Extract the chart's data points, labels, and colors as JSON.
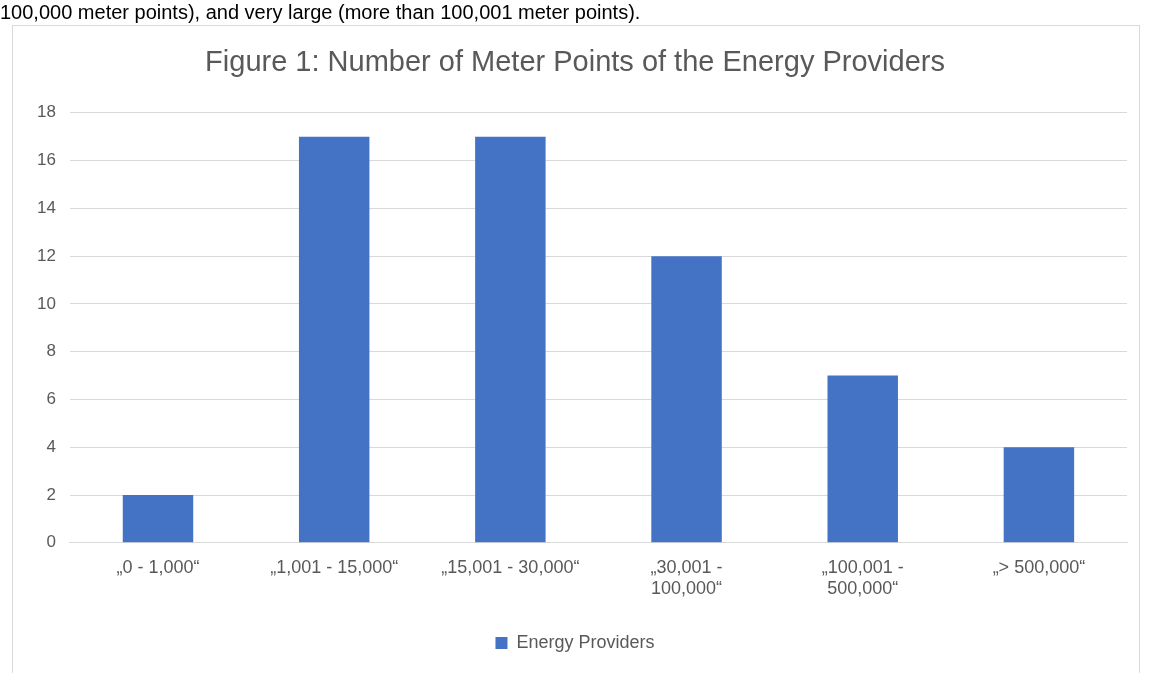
{
  "chart_data": {
    "type": "bar",
    "title": "Figure 1: Number of Meter Points of the Energy Providers",
    "annotations": [
      "100,000 meter points), and very large (more than 100,001 meter points)."
    ],
    "categories": [
      "„0 - 1,000“",
      "„1,001 - 15,000“",
      "„15,001 - 30,000“",
      "„30,001 - 100,000“",
      "„100,001 - 500,000“",
      "„> 500,000“"
    ],
    "series": [
      {
        "name": "Energy Providers",
        "color": "#4472c4",
        "values": [
          2,
          17,
          17,
          12,
          7,
          4
        ]
      }
    ],
    "ylim": [
      0,
      18
    ],
    "yticks": [
      0,
      2,
      4,
      6,
      8,
      10,
      12,
      14,
      16,
      18
    ],
    "grid": "y",
    "legend": "bottom"
  }
}
